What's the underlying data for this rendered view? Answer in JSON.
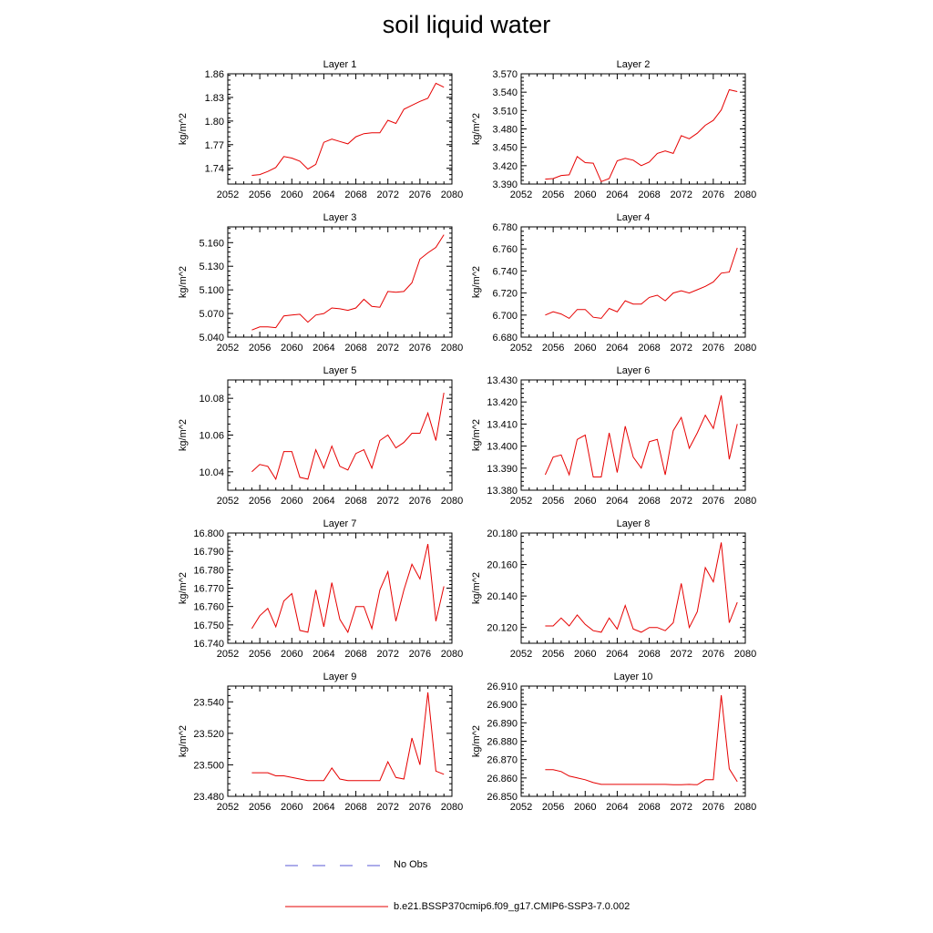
{
  "title": "soil liquid water",
  "legend": {
    "obs_label": "No Obs",
    "obs_color": "#5a5ad6",
    "model_label": "b.e21.BSSP370cmip6.f09_g17.CMIP6-SSP3-7.0.002",
    "model_color": "#e60000"
  },
  "chart_data": [
    {
      "type": "line",
      "title": "Layer 1",
      "ylabel": "kg/m^2",
      "xlim": [
        2052,
        2080
      ],
      "xticks": [
        2052,
        2056,
        2060,
        2064,
        2068,
        2072,
        2076,
        2080
      ],
      "ylim": [
        1.72,
        1.86
      ],
      "yticks": [
        "1.74",
        "1.77",
        "1.80",
        "1.83",
        "1.86"
      ],
      "series": [
        {
          "x": [
            2055,
            2056,
            2057,
            2058,
            2059,
            2060,
            2061,
            2062,
            2063,
            2064,
            2065,
            2066,
            2067,
            2068,
            2069,
            2070,
            2071,
            2072,
            2073,
            2074,
            2075,
            2076,
            2077,
            2078,
            2079
          ],
          "values": [
            1.731,
            1.732,
            1.736,
            1.741,
            1.755,
            1.753,
            1.749,
            1.739,
            1.745,
            1.773,
            1.777,
            1.774,
            1.771,
            1.78,
            1.784,
            1.785,
            1.785,
            1.801,
            1.797,
            1.815,
            1.82,
            1.825,
            1.829,
            1.848,
            1.843
          ]
        }
      ]
    },
    {
      "type": "line",
      "title": "Layer 2",
      "ylabel": "kg/m^2",
      "xlim": [
        2052,
        2080
      ],
      "xticks": [
        2052,
        2056,
        2060,
        2064,
        2068,
        2072,
        2076,
        2080
      ],
      "ylim": [
        3.39,
        3.57
      ],
      "yticks": [
        "3.390",
        "3.420",
        "3.450",
        "3.480",
        "3.510",
        "3.540",
        "3.570"
      ],
      "series": [
        {
          "x": [
            2055,
            2056,
            2057,
            2058,
            2059,
            2060,
            2061,
            2062,
            2063,
            2064,
            2065,
            2066,
            2067,
            2068,
            2069,
            2070,
            2071,
            2072,
            2073,
            2074,
            2075,
            2076,
            2077,
            2078,
            2079
          ],
          "values": [
            3.398,
            3.399,
            3.404,
            3.405,
            3.435,
            3.425,
            3.424,
            3.394,
            3.399,
            3.428,
            3.432,
            3.429,
            3.42,
            3.426,
            3.44,
            3.444,
            3.44,
            3.469,
            3.464,
            3.473,
            3.486,
            3.494,
            3.511,
            3.544,
            3.541
          ]
        }
      ]
    },
    {
      "type": "line",
      "title": "Layer 3",
      "ylabel": "kg/m^2",
      "xlim": [
        2052,
        2080
      ],
      "xticks": [
        2052,
        2056,
        2060,
        2064,
        2068,
        2072,
        2076,
        2080
      ],
      "ylim": [
        5.04,
        5.18
      ],
      "yticks": [
        "5.040",
        "5.070",
        "5.100",
        "5.130",
        "5.160"
      ],
      "series": [
        {
          "x": [
            2055,
            2056,
            2057,
            2058,
            2059,
            2060,
            2061,
            2062,
            2063,
            2064,
            2065,
            2066,
            2067,
            2068,
            2069,
            2070,
            2071,
            2072,
            2073,
            2074,
            2075,
            2076,
            2077,
            2078,
            2079
          ],
          "values": [
            5.049,
            5.053,
            5.053,
            5.052,
            5.067,
            5.068,
            5.069,
            5.059,
            5.068,
            5.07,
            5.077,
            5.076,
            5.074,
            5.077,
            5.088,
            5.079,
            5.078,
            5.098,
            5.097,
            5.098,
            5.109,
            5.139,
            5.147,
            5.154,
            5.17
          ]
        }
      ]
    },
    {
      "type": "line",
      "title": "Layer 4",
      "ylabel": "kg/m^2",
      "xlim": [
        2052,
        2080
      ],
      "xticks": [
        2052,
        2056,
        2060,
        2064,
        2068,
        2072,
        2076,
        2080
      ],
      "ylim": [
        6.68,
        6.78
      ],
      "yticks": [
        "6.680",
        "6.700",
        "6.720",
        "6.740",
        "6.760",
        "6.780"
      ],
      "series": [
        {
          "x": [
            2055,
            2056,
            2057,
            2058,
            2059,
            2060,
            2061,
            2062,
            2063,
            2064,
            2065,
            2066,
            2067,
            2068,
            2069,
            2070,
            2071,
            2072,
            2073,
            2074,
            2075,
            2076,
            2077,
            2078,
            2079
          ],
          "values": [
            6.7,
            6.703,
            6.701,
            6.697,
            6.705,
            6.705,
            6.698,
            6.697,
            6.706,
            6.703,
            6.713,
            6.71,
            6.71,
            6.716,
            6.718,
            6.713,
            6.72,
            6.722,
            6.72,
            6.723,
            6.726,
            6.73,
            6.738,
            6.739,
            6.761
          ]
        }
      ]
    },
    {
      "type": "line",
      "title": "Layer 5",
      "ylabel": "kg/m^2",
      "xlim": [
        2052,
        2080
      ],
      "xticks": [
        2052,
        2056,
        2060,
        2064,
        2068,
        2072,
        2076,
        2080
      ],
      "ylim": [
        10.03,
        10.09
      ],
      "yticks": [
        "10.04",
        "10.06",
        "10.08"
      ],
      "series": [
        {
          "x": [
            2055,
            2056,
            2057,
            2058,
            2059,
            2060,
            2061,
            2062,
            2063,
            2064,
            2065,
            2066,
            2067,
            2068,
            2069,
            2070,
            2071,
            2072,
            2073,
            2074,
            2075,
            2076,
            2077,
            2078,
            2079
          ],
          "values": [
            10.04,
            10.044,
            10.043,
            10.036,
            10.051,
            10.051,
            10.037,
            10.036,
            10.052,
            10.042,
            10.054,
            10.043,
            10.041,
            10.05,
            10.052,
            10.042,
            10.057,
            10.06,
            10.053,
            10.056,
            10.061,
            10.061,
            10.072,
            10.057,
            10.083
          ]
        }
      ]
    },
    {
      "type": "line",
      "title": "Layer 6",
      "ylabel": "kg/m^2",
      "xlim": [
        2052,
        2080
      ],
      "xticks": [
        2052,
        2056,
        2060,
        2064,
        2068,
        2072,
        2076,
        2080
      ],
      "ylim": [
        13.38,
        13.43
      ],
      "yticks": [
        "13.380",
        "13.390",
        "13.400",
        "13.410",
        "13.420",
        "13.430"
      ],
      "series": [
        {
          "x": [
            2055,
            2056,
            2057,
            2058,
            2059,
            2060,
            2061,
            2062,
            2063,
            2064,
            2065,
            2066,
            2067,
            2068,
            2069,
            2070,
            2071,
            2072,
            2073,
            2074,
            2075,
            2076,
            2077,
            2078,
            2079
          ],
          "values": [
            13.387,
            13.395,
            13.396,
            13.387,
            13.403,
            13.405,
            13.386,
            13.386,
            13.406,
            13.388,
            13.409,
            13.395,
            13.39,
            13.402,
            13.403,
            13.387,
            13.407,
            13.413,
            13.399,
            13.406,
            13.414,
            13.408,
            13.423,
            13.394,
            13.41
          ]
        }
      ]
    },
    {
      "type": "line",
      "title": "Layer 7",
      "ylabel": "kg/m^2",
      "xlim": [
        2052,
        2080
      ],
      "xticks": [
        2052,
        2056,
        2060,
        2064,
        2068,
        2072,
        2076,
        2080
      ],
      "ylim": [
        16.74,
        16.8
      ],
      "yticks": [
        "16.740",
        "16.750",
        "16.760",
        "16.770",
        "16.780",
        "16.790",
        "16.800"
      ],
      "series": [
        {
          "x": [
            2055,
            2056,
            2057,
            2058,
            2059,
            2060,
            2061,
            2062,
            2063,
            2064,
            2065,
            2066,
            2067,
            2068,
            2069,
            2070,
            2071,
            2072,
            2073,
            2074,
            2075,
            2076,
            2077,
            2078,
            2079
          ],
          "values": [
            16.748,
            16.755,
            16.759,
            16.749,
            16.763,
            16.767,
            16.747,
            16.746,
            16.769,
            16.749,
            16.773,
            16.753,
            16.746,
            16.76,
            16.76,
            16.748,
            16.769,
            16.779,
            16.752,
            16.769,
            16.783,
            16.775,
            16.794,
            16.752,
            16.771
          ]
        }
      ]
    },
    {
      "type": "line",
      "title": "Layer 8",
      "ylabel": "kg/m^2",
      "xlim": [
        2052,
        2080
      ],
      "xticks": [
        2052,
        2056,
        2060,
        2064,
        2068,
        2072,
        2076,
        2080
      ],
      "ylim": [
        20.11,
        20.18
      ],
      "yticks": [
        "20.120",
        "20.140",
        "20.160",
        "20.180"
      ],
      "series": [
        {
          "x": [
            2055,
            2056,
            2057,
            2058,
            2059,
            2060,
            2061,
            2062,
            2063,
            2064,
            2065,
            2066,
            2067,
            2068,
            2069,
            2070,
            2071,
            2072,
            2073,
            2074,
            2075,
            2076,
            2077,
            2078,
            2079
          ],
          "values": [
            20.121,
            20.121,
            20.126,
            20.121,
            20.128,
            20.122,
            20.118,
            20.117,
            20.126,
            20.119,
            20.134,
            20.119,
            20.117,
            20.12,
            20.12,
            20.118,
            20.123,
            20.148,
            20.12,
            20.13,
            20.158,
            20.149,
            20.174,
            20.123,
            20.136
          ]
        }
      ]
    },
    {
      "type": "line",
      "title": "Layer 9",
      "ylabel": "kg/m^2",
      "xlim": [
        2052,
        2080
      ],
      "xticks": [
        2052,
        2056,
        2060,
        2064,
        2068,
        2072,
        2076,
        2080
      ],
      "ylim": [
        23.48,
        23.55
      ],
      "yticks": [
        "23.480",
        "23.500",
        "23.520",
        "23.540"
      ],
      "series": [
        {
          "x": [
            2055,
            2056,
            2057,
            2058,
            2059,
            2060,
            2061,
            2062,
            2063,
            2064,
            2065,
            2066,
            2067,
            2068,
            2069,
            2070,
            2071,
            2072,
            2073,
            2074,
            2075,
            2076,
            2077,
            2078,
            2079
          ],
          "values": [
            23.495,
            23.495,
            23.495,
            23.493,
            23.493,
            23.492,
            23.491,
            23.49,
            23.49,
            23.49,
            23.498,
            23.491,
            23.49,
            23.49,
            23.49,
            23.49,
            23.49,
            23.502,
            23.492,
            23.491,
            23.517,
            23.5,
            23.546,
            23.496,
            23.494
          ]
        }
      ]
    },
    {
      "type": "line",
      "title": "Layer 10",
      "ylabel": "kg/m^2",
      "xlim": [
        2052,
        2080
      ],
      "xticks": [
        2052,
        2056,
        2060,
        2064,
        2068,
        2072,
        2076,
        2080
      ],
      "ylim": [
        26.85,
        26.91
      ],
      "yticks": [
        "26.850",
        "26.860",
        "26.870",
        "26.880",
        "26.890",
        "26.900",
        "26.910"
      ],
      "series": [
        {
          "x": [
            2055,
            2056,
            2057,
            2058,
            2059,
            2060,
            2061,
            2062,
            2063,
            2064,
            2065,
            2066,
            2067,
            2068,
            2069,
            2070,
            2071,
            2072,
            2073,
            2074,
            2075,
            2076,
            2077,
            2078,
            2079
          ],
          "values": [
            26.8645,
            26.8645,
            26.8635,
            26.861,
            26.86,
            26.859,
            26.8575,
            26.8565,
            26.8565,
            26.8565,
            26.8565,
            26.8565,
            26.8565,
            26.8565,
            26.8565,
            26.8565,
            26.8563,
            26.8563,
            26.8565,
            26.8563,
            26.859,
            26.859,
            26.905,
            26.865,
            26.858
          ]
        }
      ]
    }
  ]
}
